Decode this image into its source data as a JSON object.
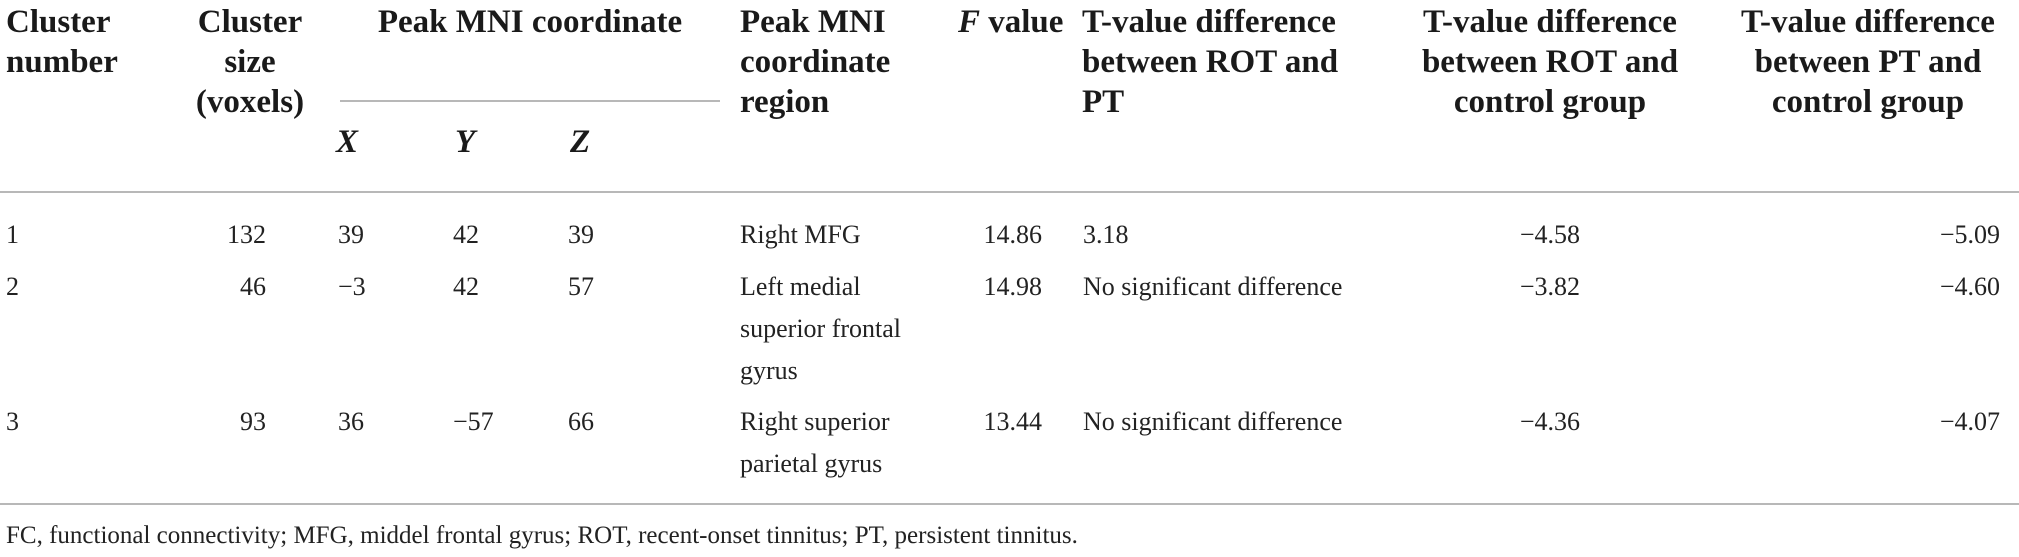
{
  "headers": {
    "cluster_number": "Cluster number",
    "cluster_size": "Cluster size (voxels)",
    "peak_mni": "Peak MNI coordinate",
    "x": "X",
    "y": "Y",
    "z": "Z",
    "region": "Peak MNI coordinate region",
    "f_italic": "F",
    "f_rest": " value",
    "rot_pt": "T-value difference between ROT and PT",
    "rot_control": "T-value difference between ROT and control group",
    "pt_control": "T-value difference between PT and control group"
  },
  "rows": [
    {
      "cluster": "1",
      "size": "132",
      "x": "39",
      "y": "42",
      "z": "39",
      "region": "Right MFG",
      "f": "14.86",
      "rot_pt": "3.18",
      "rot_control": "−4.58",
      "pt_control": "−5.09"
    },
    {
      "cluster": "2",
      "size": "46",
      "x": "−3",
      "y": "42",
      "z": "57",
      "region": "Left medial superior frontal gyrus",
      "f": "14.98",
      "rot_pt": "No significant difference",
      "rot_control": "−3.82",
      "pt_control": "−4.60"
    },
    {
      "cluster": "3",
      "size": "93",
      "x": "36",
      "y": "−57",
      "z": "66",
      "region": "Right superior parietal gyrus",
      "f": "13.44",
      "rot_pt": "No significant difference",
      "rot_control": "−4.36",
      "pt_control": "−4.07"
    }
  ],
  "footnote": "FC, functional connectivity; MFG, middel frontal gyrus; ROT, recent-onset tinnitus; PT, persistent tinnitus."
}
